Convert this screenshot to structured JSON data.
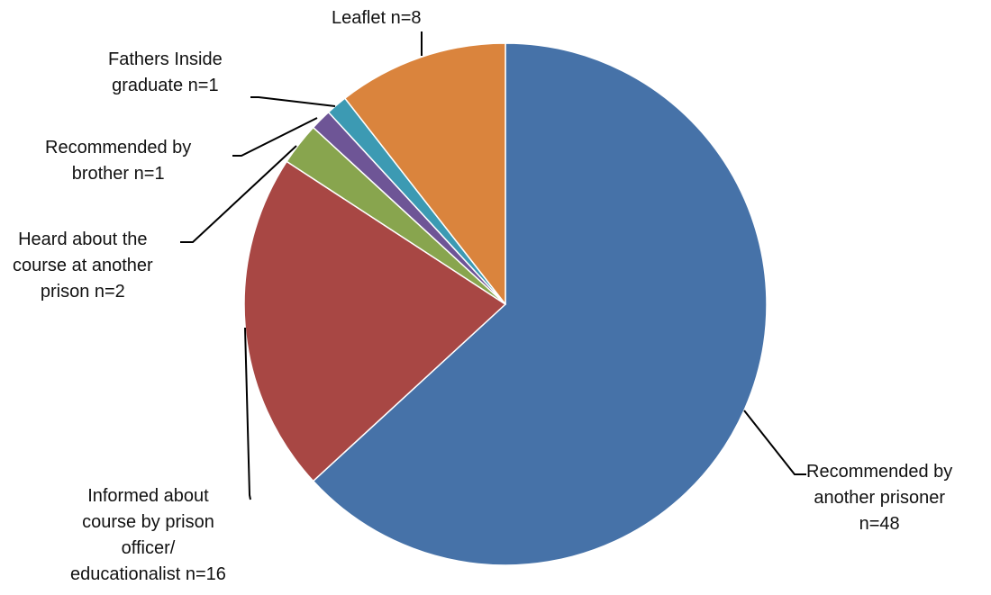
{
  "chart_data": {
    "type": "pie",
    "start_angle_deg": 0,
    "direction": "clockwise",
    "slices": [
      {
        "value": 48,
        "color": "#4672A8",
        "label_lines": [
          "Recommended by",
          "another prisoner",
          "n=48"
        ]
      },
      {
        "value": 16,
        "color": "#A84744",
        "label_lines": [
          "Informed about",
          "course by prison",
          "officer/",
          "educationalist n=16"
        ]
      },
      {
        "value": 2,
        "color": "#88A54E",
        "label_lines": [
          "Heard about the",
          "course at another",
          "prison n=2"
        ]
      },
      {
        "value": 1,
        "color": "#6E5596",
        "label_lines": [
          "Recommended by",
          "brother n=1"
        ]
      },
      {
        "value": 1,
        "color": "#3C9AB3",
        "label_lines": [
          "Fathers Inside",
          "graduate n=1"
        ]
      },
      {
        "value": 8,
        "color": "#DA843D",
        "label_lines": [
          "Leaflet n=8"
        ]
      }
    ],
    "legend": "none",
    "leader_line_color": "#000000"
  }
}
